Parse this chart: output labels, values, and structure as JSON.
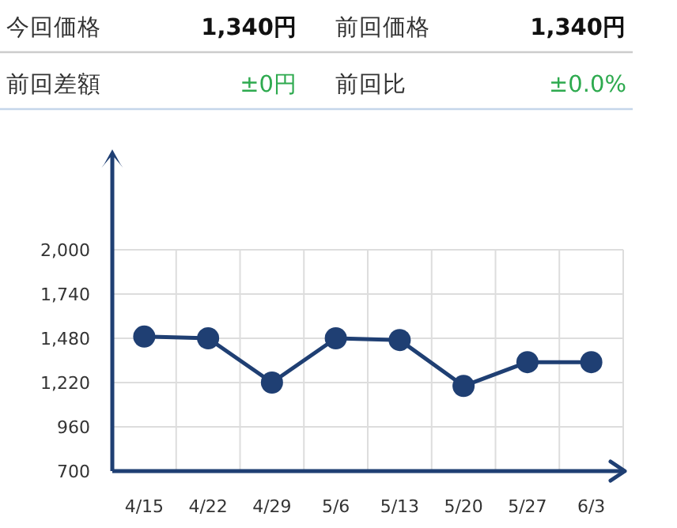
{
  "chart_data": [
    {
      "type": "other",
      "annotations": [
        "今回価格",
        "1,340円",
        "前回価格",
        "1,340円",
        "前回差額",
        "±0円",
        "前回比",
        "±0.0%"
      ]
    },
    {
      "type": "line",
      "categories": [
        "4/15",
        "4/22",
        "4/29",
        "5/6",
        "5/13",
        "5/20",
        "5/27",
        "6/3"
      ],
      "values": [
        1490,
        1480,
        1220,
        1480,
        1470,
        1200,
        1340,
        1340
      ],
      "color": "#1f3f73",
      "marker": "circle",
      "grid": true,
      "ylim": [
        700,
        2000
      ],
      "yticks": [
        {
          "value": 700,
          "label": "700"
        },
        {
          "value": 960,
          "label": "960"
        },
        {
          "value": 1220,
          "label": "1,220"
        },
        {
          "value": 1480,
          "label": "1,480"
        },
        {
          "value": 1740,
          "label": "1,740"
        },
        {
          "value": 2000,
          "label": "2,000"
        }
      ]
    }
  ]
}
